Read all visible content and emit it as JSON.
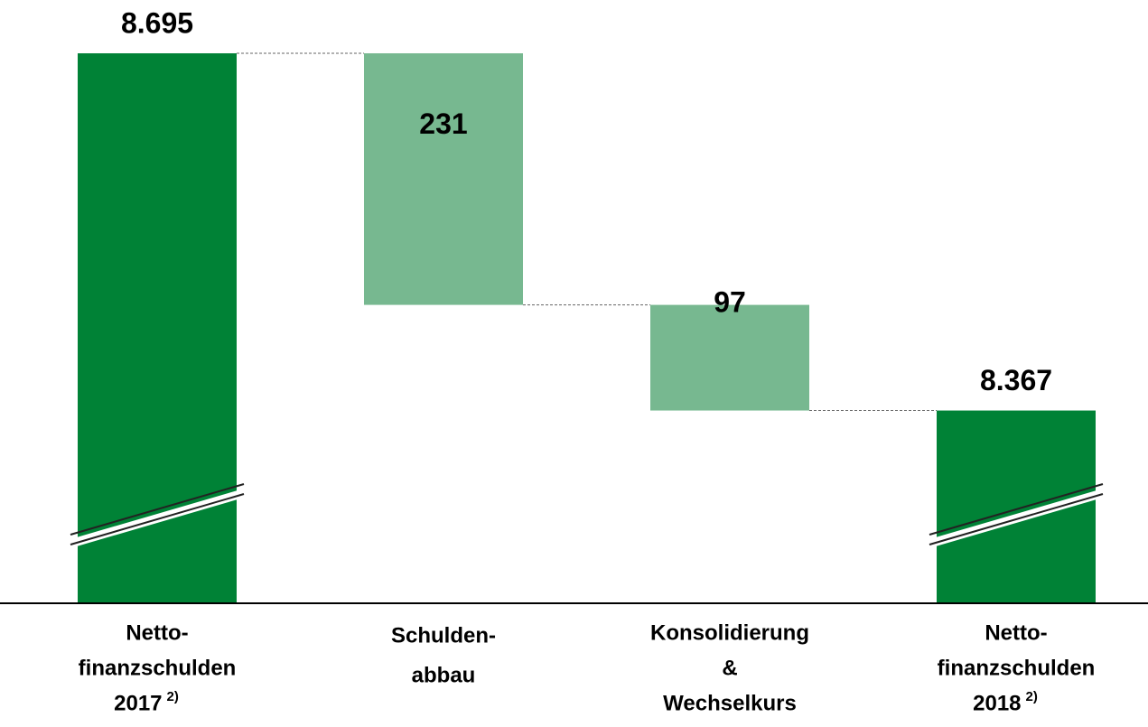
{
  "chart_data": {
    "type": "waterfall",
    "categories": [
      [
        "Netto-",
        "finanzschulden",
        "2017"
      ],
      [
        "Schulden-",
        "abbau"
      ],
      [
        "Konsolidierung",
        "&",
        "Wechselkurs"
      ],
      [
        "Netto-",
        "finanzschulden",
        "2018"
      ]
    ],
    "category_notes": [
      "2)",
      null,
      null,
      "2)"
    ],
    "values": [
      8695,
      -231,
      -97,
      8367
    ],
    "value_labels": [
      "8.695",
      "231",
      "97",
      "8.367"
    ],
    "measure": [
      "total",
      "relative",
      "relative",
      "total"
    ],
    "colors": {
      "total": "#008236",
      "relative": "#77b890"
    },
    "ylim": [
      8190,
      8700
    ],
    "axis_break": true
  }
}
